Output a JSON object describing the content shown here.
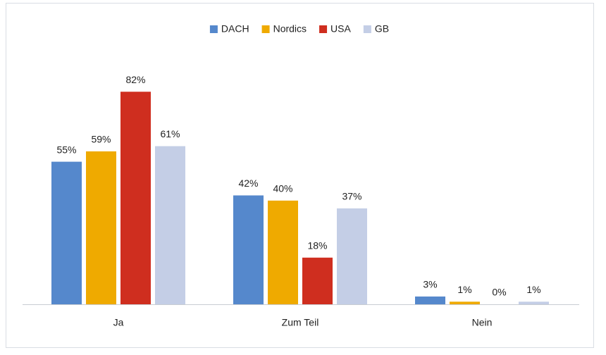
{
  "chart_data": {
    "type": "bar",
    "categories": [
      "Ja",
      "Zum Teil",
      "Nein"
    ],
    "series": [
      {
        "name": "DACH",
        "color": "#5588cc",
        "values": [
          55,
          42,
          3
        ],
        "value_labels": [
          "55%",
          "42%",
          "3%"
        ]
      },
      {
        "name": "Nordics",
        "color": "#efaa00",
        "values": [
          59,
          40,
          1
        ],
        "value_labels": [
          "59%",
          "40%",
          "1%"
        ]
      },
      {
        "name": "USA",
        "color": "#cf2e1f",
        "values": [
          82,
          18,
          0
        ],
        "value_labels": [
          "82%",
          "18%",
          "0%"
        ]
      },
      {
        "name": "GB",
        "color": "#c4cee6",
        "values": [
          61,
          37,
          1
        ],
        "value_labels": [
          "61%",
          "37%",
          "1%"
        ]
      }
    ],
    "legend": "top"
  }
}
